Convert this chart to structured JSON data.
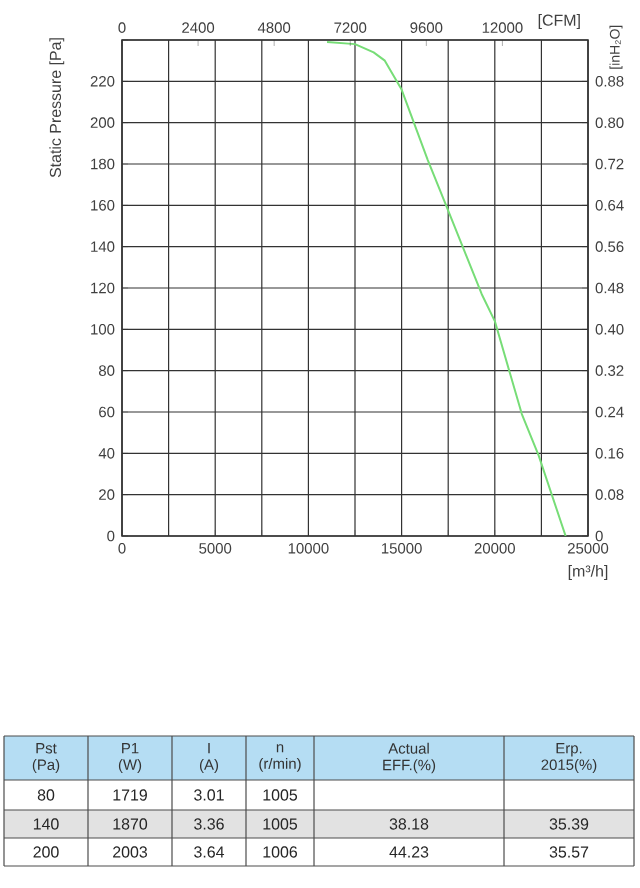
{
  "chart_data": [
    {
      "type": "line",
      "ylabel": "Static Pressure [Pa]",
      "xlabel": "[m³/h]",
      "x2label": "[CFM]",
      "y2label": "[inH₂O]",
      "xlim": [
        0,
        25000
      ],
      "xticks": [
        0,
        {
          "value": 2500,
          "label": null
        },
        5000,
        {
          "value": 7500,
          "label": null
        },
        10000,
        {
          "value": 12500,
          "label": null
        },
        15000,
        {
          "value": 17500,
          "label": null
        },
        20000,
        {
          "value": 22500,
          "label": null
        },
        25000
      ],
      "ylim": [
        0,
        240
      ],
      "yticks": [
        0,
        20,
        40,
        60,
        80,
        100,
        120,
        140,
        160,
        180,
        200,
        220,
        {
          "value": 240,
          "label": null
        }
      ],
      "x2lim": [
        0,
        14700
      ],
      "x2ticks": [
        0,
        2400,
        4800,
        7200,
        9600,
        12000
      ],
      "y2lim": [
        0,
        0.96
      ],
      "y2ticks": [
        0,
        0.08,
        0.16,
        0.24,
        0.32,
        {
          "value": 0.4,
          "label": "0.40"
        },
        0.48,
        0.56,
        0.64,
        0.72,
        {
          "value": 0.8,
          "label": "0.80"
        },
        0.88
      ],
      "grid": true,
      "marker": "none",
      "series": [
        {
          "color": "#77dd77",
          "x": [
            11000,
            12500,
            13500,
            14100,
            15000,
            16400,
            17430,
            19300,
            20000,
            21450,
            22350,
            23800
          ],
          "values": [
            239,
            238,
            234,
            230,
            216,
            182,
            159,
            117,
            104,
            59,
            39,
            0
          ]
        }
      ]
    },
    {
      "type": "other",
      "categories": [
        "Pst (Pa)",
        "P1 (W)",
        "I (A)",
        "n (r/min)",
        "Actual EFF.(%)",
        "Erp. 2015(%)"
      ],
      "cell_labels": [
        [
          "80",
          "1719",
          "3.01",
          "1005",
          null,
          null
        ],
        [
          "140",
          "1870",
          "3.36",
          "1005",
          "38.18",
          "35.39"
        ],
        [
          "200",
          "2003",
          "3.64",
          "1006",
          "44.23",
          "35.57"
        ]
      ]
    }
  ]
}
